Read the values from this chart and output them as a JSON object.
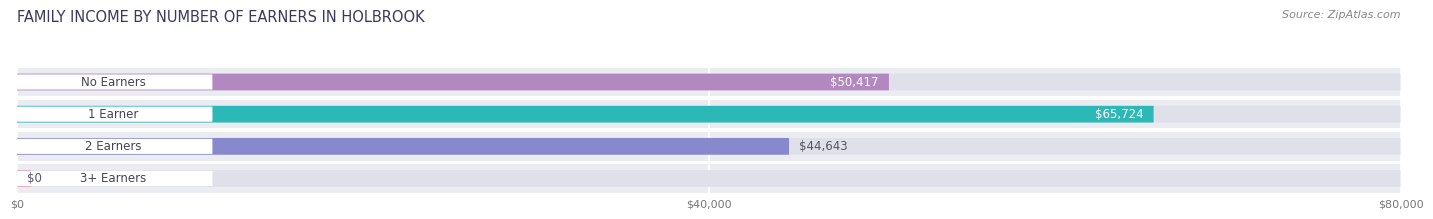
{
  "title": "FAMILY INCOME BY NUMBER OF EARNERS IN HOLBROOK",
  "source": "Source: ZipAtlas.com",
  "categories": [
    "No Earners",
    "1 Earner",
    "2 Earners",
    "3+ Earners"
  ],
  "values": [
    50417,
    65724,
    44643,
    0
  ],
  "bar_colors": [
    "#b388c0",
    "#2db8b8",
    "#8888cc",
    "#f4a0b5"
  ],
  "value_labels": [
    "$50,417",
    "$65,724",
    "$44,643",
    "$0"
  ],
  "value_inside": [
    true,
    true,
    false,
    false
  ],
  "xlim": [
    0,
    80000
  ],
  "xticks": [
    0,
    40000,
    80000
  ],
  "xticklabels": [
    "$0",
    "$40,000",
    "$80,000"
  ],
  "fig_bg": "#ffffff",
  "row_bg": "#ebebf2",
  "bar_bg": "#e0e0ea",
  "title_color": "#3a3a5c",
  "source_color": "#888888",
  "title_fontsize": 10.5,
  "source_fontsize": 8,
  "label_fontsize": 8.5,
  "value_fontsize": 8.5
}
